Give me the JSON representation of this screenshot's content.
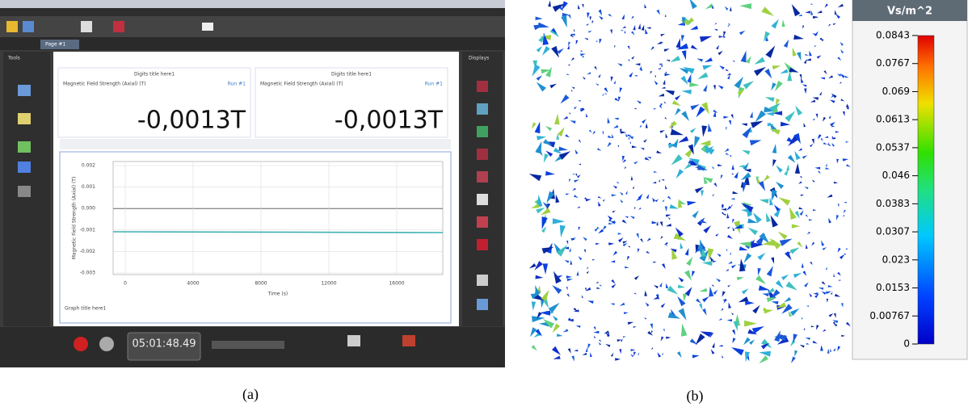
{
  "panel_a": {
    "tab": "Page #1",
    "sidebar_left": "Tools",
    "sidebar_right": "Displays",
    "digits": [
      {
        "title": "Digits title here1",
        "measure": "Magnetic Field Strength (Axial) (T)",
        "run": "Run #1",
        "value": "-0,0013T"
      },
      {
        "title": "Digits title here1",
        "measure": "Magnetic Field Strength (Axial) (T)",
        "run": "Run #1",
        "value": "-0,0013T"
      }
    ],
    "graph": {
      "ylabel": "Magnetic Field Strength (Axial) (T)",
      "yticks": [
        "0.002",
        "0.001",
        "0.000",
        "-0.001",
        "-0.002",
        "-0.003"
      ],
      "xticks": [
        "0",
        "4000",
        "8000",
        "12000",
        "16000"
      ],
      "xlabel": "Time (s)",
      "title": "Graph title here1"
    },
    "timer": "05:01:48.49"
  },
  "panel_b": {
    "colorbar": {
      "title": "Vs/m^2",
      "labels": [
        "0.0843",
        "0.0767",
        "0.069",
        "0.0613",
        "0.0537",
        "0.046",
        "0.0383",
        "0.0307",
        "0.023",
        "0.0153",
        "0.00767",
        "0"
      ]
    }
  },
  "captions": [
    "(a)",
    "(b)"
  ]
}
